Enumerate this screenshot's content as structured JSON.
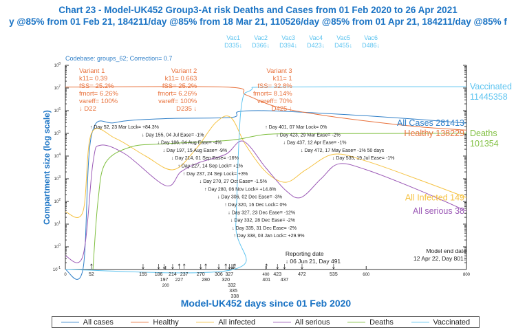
{
  "chart_data": {
    "type": "line",
    "title": "Chart 23 - Model-UK452 Group3-At risk Deaths and Cases from 01 Feb 2020 to 26 Apr 2021",
    "subtitle": "y @85% from 01 Feb 21, 184211/day @85% from 18 Mar 21, 110526/day @85% from 01 Apr 21, 184211/day @85% f",
    "codebase": "Codebase: groups_62; Correction= 0.7",
    "xlabel": "Model-UK452 days since 01 Feb 2020",
    "ylabel": "Compartment size (log scale)",
    "xlim": [
      0,
      800
    ],
    "ylim": [
      0.1,
      100000000
    ],
    "yscale": "log",
    "xticks": [
      "0",
      "200",
      "400",
      "600",
      "800"
    ],
    "yticks_exp": [
      "8",
      "7",
      "6",
      "5",
      "4",
      "3",
      "2",
      "1",
      "0",
      "-1"
    ],
    "series": [
      {
        "name": "All cases",
        "color": "#2f7fc8",
        "end_label": "All Cases 281413",
        "points": [
          [
            0,
            0.1
          ],
          [
            35,
            0.1
          ],
          [
            52,
            80000
          ],
          [
            100,
            300000
          ],
          [
            200,
            450000
          ],
          [
            330,
            500000
          ],
          [
            345,
            900000
          ],
          [
            400,
            1000000
          ],
          [
            500,
            800000
          ],
          [
            600,
            600000
          ],
          [
            700,
            420000
          ],
          [
            800,
            281413
          ]
        ]
      },
      {
        "name": "Healthy",
        "color": "#e8703a",
        "end_label": "Healthy 138229",
        "points": [
          [
            0,
            11000000
          ],
          [
            320,
            11000000
          ],
          [
            360,
            5000000
          ],
          [
            420,
            1500000
          ],
          [
            500,
            700000
          ],
          [
            600,
            350000
          ],
          [
            700,
            200000
          ],
          [
            800,
            138229
          ]
        ]
      },
      {
        "name": "All infected",
        "color": "#f5c242",
        "end_label": "All Infected 149",
        "points": [
          [
            0,
            35
          ],
          [
            35,
            35
          ],
          [
            52,
            100000
          ],
          [
            100,
            60000
          ],
          [
            160,
            10000
          ],
          [
            215,
            2500
          ],
          [
            260,
            20000
          ],
          [
            300,
            300000
          ],
          [
            330,
            500000
          ],
          [
            360,
            30000
          ],
          [
            400,
            2000
          ],
          [
            440,
            700
          ],
          [
            480,
            2500
          ],
          [
            535,
            12000
          ],
          [
            600,
            6000
          ],
          [
            700,
            1000
          ],
          [
            800,
            149
          ]
        ]
      },
      {
        "name": "All serious",
        "color": "#9b59b6",
        "end_label": "All serious 38",
        "points": [
          [
            0,
            0.4
          ],
          [
            35,
            0.4
          ],
          [
            55,
            5000
          ],
          [
            70,
            30000
          ],
          [
            120,
            12000
          ],
          [
            200,
            500
          ],
          [
            230,
            2000
          ],
          [
            265,
            5000
          ],
          [
            320,
            12000
          ],
          [
            355,
            45000
          ],
          [
            400,
            3000
          ],
          [
            440,
            300
          ],
          [
            470,
            150
          ],
          [
            510,
            1000
          ],
          [
            545,
            4500
          ],
          [
            600,
            2500
          ],
          [
            700,
            350
          ],
          [
            800,
            38
          ]
        ]
      },
      {
        "name": "Deaths",
        "color": "#7fbf3f",
        "end_label": "Deaths",
        "end_value": "101354",
        "points": [
          [
            55,
            0.1
          ],
          [
            65,
            100
          ],
          [
            80,
            5000
          ],
          [
            130,
            25000
          ],
          [
            200,
            35000
          ],
          [
            330,
            50000
          ],
          [
            400,
            90000
          ],
          [
            500,
            97000
          ],
          [
            800,
            101354
          ]
        ]
      },
      {
        "name": "Vaccinated",
        "color": "#5ec4f0",
        "end_label": "Vaccinated",
        "end_value": "11445358",
        "points": [
          [
            0,
            0.1
          ],
          [
            335,
            0.1
          ],
          [
            340,
            10
          ],
          [
            350,
            1000000
          ],
          [
            370,
            8000000
          ],
          [
            420,
            11000000
          ],
          [
            800,
            11445358
          ]
        ]
      }
    ],
    "variants": [
      {
        "lines": [
          "Variant 1",
          "k11= 0.39",
          "fSS= 25.2%",
          "fmort= 6.26%",
          "vareff= 100%",
          "↓ D22"
        ],
        "day": 22,
        "align": "left"
      },
      {
        "lines": [
          "Variant 2",
          "k11= 0.663",
          "fSS= 25.2%",
          "fmort= 6.26%",
          "vareff= 100%",
          "D235 ↓"
        ],
        "day": 235,
        "align": "right"
      },
      {
        "lines": [
          "Variant 3",
          "k11= 1",
          "fSS= 32.8%",
          "fmort= 8.14%",
          "vareff= 70%",
          "D425 ↓"
        ],
        "day": 425,
        "align": "right"
      }
    ],
    "vaccinations": [
      {
        "label": "Vac1",
        "day_label": "D335↓",
        "day": 335
      },
      {
        "label": "Vac2",
        "day_label": "D366↓",
        "day": 366
      },
      {
        "label": "Vac3",
        "day_label": "D394↓",
        "day": 394
      },
      {
        "label": "Vac4",
        "day_label": "D423↓",
        "day": 423
      },
      {
        "label": "Vac5",
        "day_label": "D455↓",
        "day": 455
      },
      {
        "label": "Vac6",
        "day_label": "D486↓",
        "day": 486
      }
    ],
    "interventions": [
      {
        "day": 52,
        "dir": "up",
        "text": "Day 52, 23 Mar Lock= +84.3%"
      },
      {
        "day": 155,
        "dir": "down",
        "text": "Day 155, 04 Jul Ease= -1%"
      },
      {
        "day": 186,
        "dir": "down",
        "text": "Day 186, 04 Aug Ease= -4%"
      },
      {
        "day": 197,
        "dir": "down",
        "text": "Day 197, 15 Aug Ease= -9%"
      },
      {
        "day": 214,
        "dir": "down",
        "text": "Day 214, 01 Sep Ease= -16%"
      },
      {
        "day": 227,
        "dir": "up",
        "text": "Day 227, 14 Sep Lock= +1%"
      },
      {
        "day": 237,
        "dir": "up",
        "text": "Day 237, 24 Sep Lock= +3%"
      },
      {
        "day": 270,
        "dir": "down",
        "text": "Day 270, 27 Oct Ease= -1.5%"
      },
      {
        "day": 280,
        "dir": "up",
        "text": "Day 280, 06 Nov Lock= +14.8%"
      },
      {
        "day": 306,
        "dir": "down",
        "text": "Day 306, 02 Dec Ease= -3%"
      },
      {
        "day": 320,
        "dir": "up",
        "text": "Day 320, 16 Dec Lock= 0%"
      },
      {
        "day": 327,
        "dir": "down",
        "text": "Day 327, 23 Dec Ease= -12%"
      },
      {
        "day": 332,
        "dir": "down",
        "text": "Day 332, 28 Dec Ease= -2%"
      },
      {
        "day": 335,
        "dir": "down",
        "text": "Day 335, 31 Dec Ease= -2%"
      },
      {
        "day": 338,
        "dir": "up",
        "text": "Day 338, 03 Jan Lock= +29.9%"
      },
      {
        "day": 401,
        "dir": "up",
        "text": "Day 401, 07 Mar Lock= 0%"
      },
      {
        "day": 423,
        "dir": "down",
        "text": "Day 423, 29 Mar Ease= -2%"
      },
      {
        "day": 437,
        "dir": "down",
        "text": "Day 437, 12 Apr Ease= -1%"
      },
      {
        "day": 472,
        "dir": "down",
        "text": "Day 472, 17 May Ease= -1% 50 days"
      },
      {
        "day": 535,
        "dir": "down",
        "text": "Day 535, 19 Jul Ease= -1%"
      }
    ],
    "reporting_date": {
      "title": "Reporting date",
      "text": "↓ 06 Jun 21, Day 491",
      "day": 491
    },
    "model_end": {
      "title": "Model end date",
      "text": "12 Apr 22, Day 801↓",
      "day": 801
    },
    "legend_position": "bottom"
  }
}
